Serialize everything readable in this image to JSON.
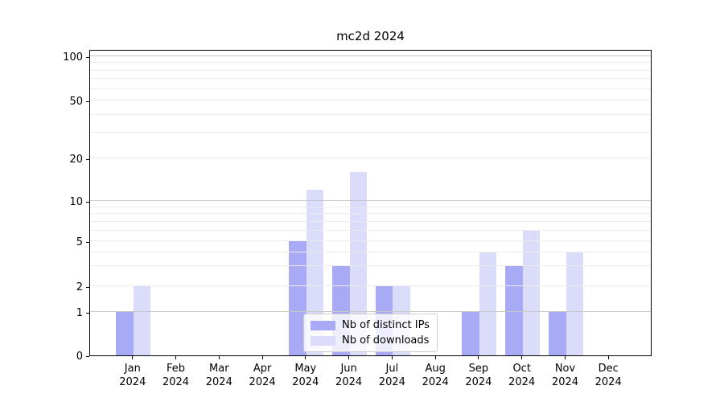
{
  "chart_data": {
    "type": "bar",
    "title": "mc2d 2024",
    "categories": [
      "Jan",
      "Feb",
      "Mar",
      "Apr",
      "May",
      "Jun",
      "Jul",
      "Aug",
      "Sep",
      "Oct",
      "Nov",
      "Dec"
    ],
    "year_label": "2024",
    "series": [
      {
        "name": "Nb of distinct IPs",
        "color": "#a8aaf5",
        "values": [
          1,
          0,
          0,
          0,
          5,
          3,
          2,
          0,
          1,
          3,
          1,
          0
        ]
      },
      {
        "name": "Nb of downloads",
        "color": "#dadcfa",
        "values": [
          2,
          0,
          0,
          0,
          12,
          16,
          2,
          0,
          4,
          6,
          4,
          0
        ]
      }
    ],
    "yticks": [
      0,
      1,
      2,
      5,
      10,
      20,
      50,
      100
    ],
    "ylim": [
      0,
      112
    ],
    "xlabel": "",
    "ylabel": "",
    "yscale": "symlog",
    "grid": "both",
    "legend_position": "lower center"
  }
}
